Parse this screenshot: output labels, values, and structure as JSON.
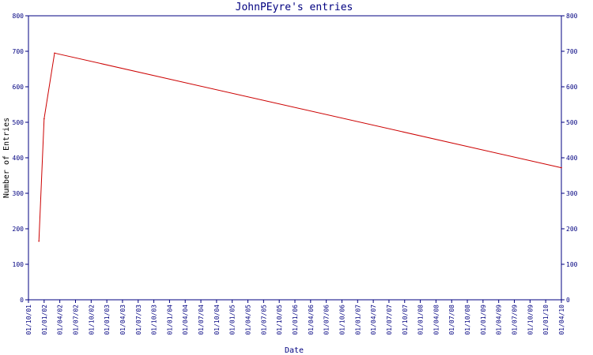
{
  "chart_data": {
    "type": "line",
    "title": "JohnPEyre's entries",
    "xlabel": "Date",
    "ylabel": "Number of Entries",
    "ylim": [
      0,
      800
    ],
    "y_ticks": [
      0,
      100,
      200,
      300,
      400,
      500,
      600,
      700,
      800
    ],
    "x_tick_labels": [
      "01/10/01",
      "01/01/02",
      "01/04/02",
      "01/07/02",
      "01/10/02",
      "01/01/03",
      "01/04/03",
      "01/07/03",
      "01/10/03",
      "01/01/04",
      "01/04/04",
      "01/07/04",
      "01/10/04",
      "01/01/05",
      "01/04/05",
      "01/07/05",
      "01/10/05",
      "01/01/06",
      "01/04/06",
      "01/07/06",
      "01/10/06",
      "01/01/07",
      "01/04/07",
      "01/07/07",
      "01/10/07",
      "01/01/08",
      "01/04/08",
      "01/07/08",
      "01/10/08",
      "01/01/09",
      "01/04/09",
      "01/07/09",
      "01/10/09",
      "01/01/10",
      "01/04/10"
    ],
    "grid": false,
    "line_color": "#cc0000",
    "axis_color": "#000080",
    "series": [
      {
        "x": [
          "01/12/01",
          "01/01/02",
          "01/03/02",
          "01/04/10"
        ],
        "values": [
          165,
          510,
          695,
          372
        ]
      }
    ]
  }
}
